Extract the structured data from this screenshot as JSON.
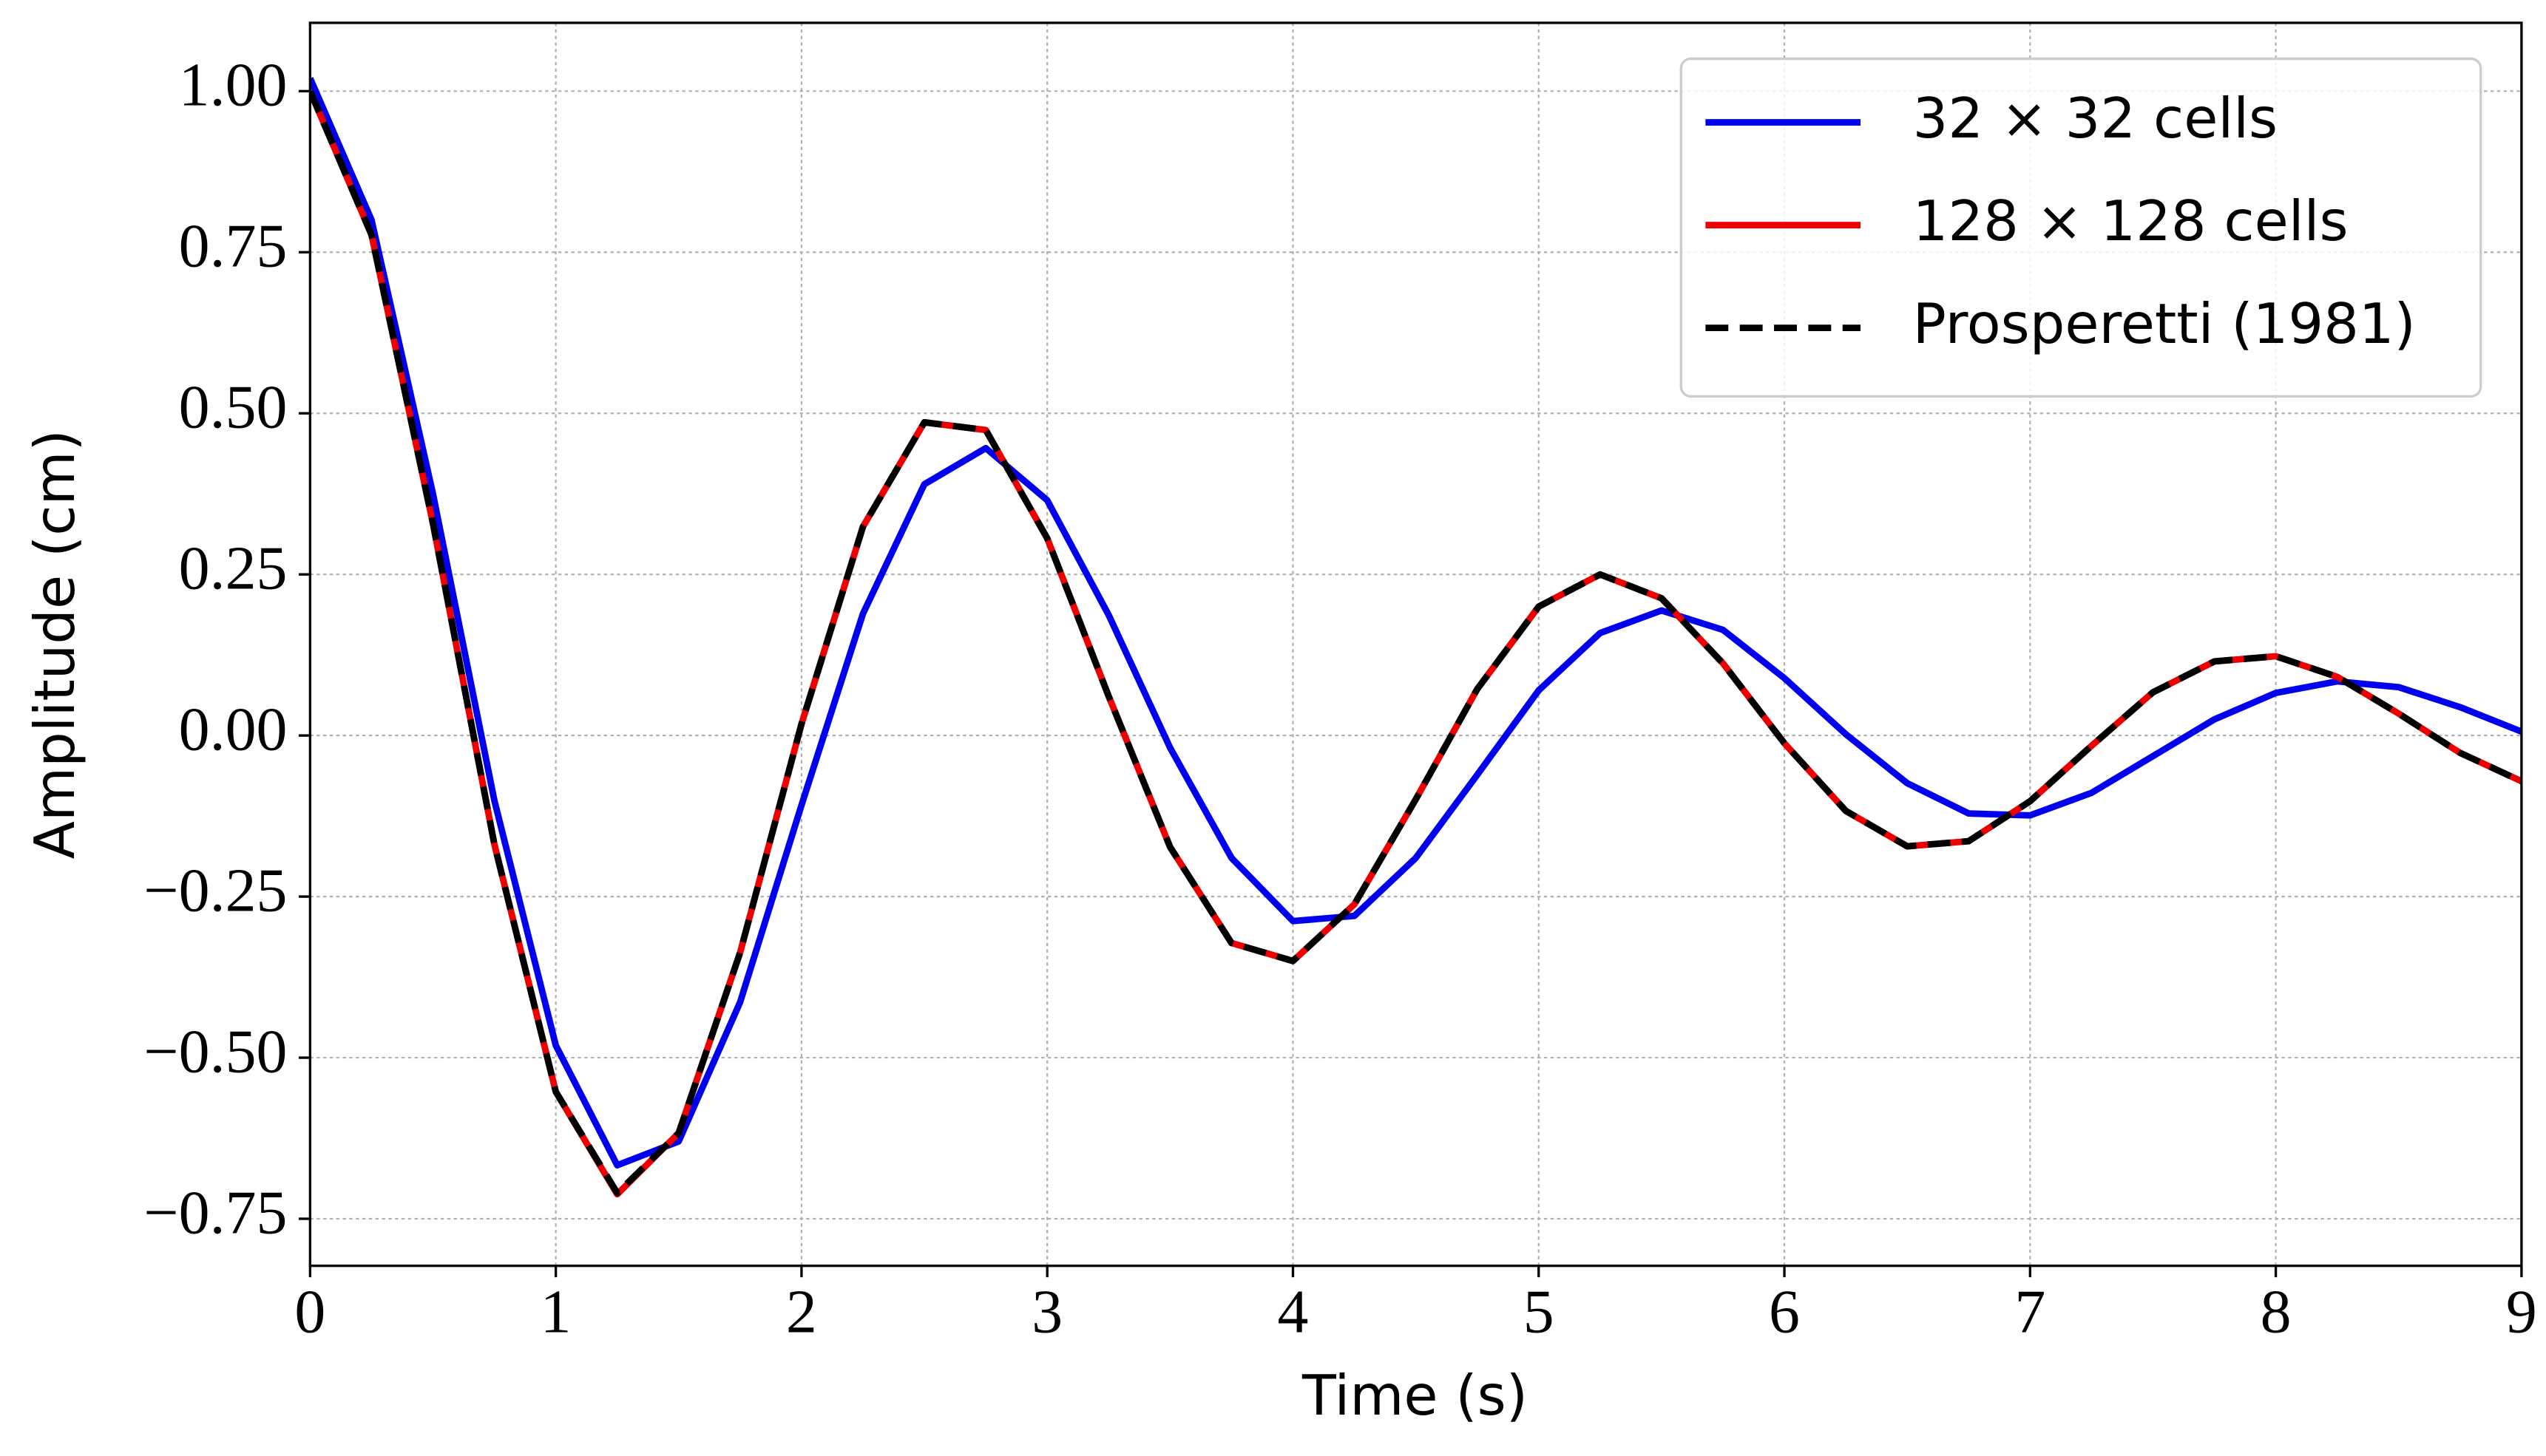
{
  "chart_data": {
    "type": "line",
    "x_label": "Time (s)",
    "y_label": "Amplitude (cm)",
    "xlim": [
      0,
      9
    ],
    "ylim": [
      -0.823,
      1.106
    ],
    "xticks": [
      0,
      1,
      2,
      3,
      4,
      5,
      6,
      7,
      8,
      9
    ],
    "yticks": [
      {
        "value": 1.0,
        "label": "1.00"
      },
      {
        "value": 0.75,
        "label": "0.75"
      },
      {
        "value": 0.5,
        "label": "0.50"
      },
      {
        "value": 0.25,
        "label": "0.25"
      },
      {
        "value": 0.0,
        "label": "0.00"
      },
      {
        "value": -0.25,
        "label": "−0.25"
      },
      {
        "value": -0.5,
        "label": "−0.50"
      },
      {
        "value": -0.75,
        "label": "−0.75"
      }
    ],
    "grid": true,
    "legend": "upper right",
    "x": [
      0,
      0.25,
      0.5,
      0.75,
      1,
      1.25,
      1.5,
      1.75,
      2,
      2.25,
      2.5,
      2.75,
      3,
      3.25,
      3.5,
      3.75,
      4,
      4.25,
      4.5,
      4.75,
      5,
      5.25,
      5.5,
      5.75,
      6,
      6.25,
      6.5,
      6.75,
      7,
      7.25,
      7.5,
      7.75,
      8,
      8.25,
      8.5,
      8.75,
      9
    ],
    "series": [
      {
        "name": "32 × 32 cells",
        "color": "#0000ee",
        "dashed": false,
        "values": [
          1.02,
          0.8,
          0.375,
          -0.101,
          -0.481,
          -0.667,
          -0.63,
          -0.414,
          -0.108,
          0.189,
          0.39,
          0.446,
          0.365,
          0.187,
          -0.019,
          -0.19,
          -0.288,
          -0.28,
          -0.19,
          -0.061,
          0.07,
          0.159,
          0.194,
          0.164,
          0.089,
          0.002,
          -0.074,
          -0.121,
          -0.124,
          -0.089,
          -0.032,
          0.025,
          0.066,
          0.084,
          0.075,
          0.044,
          0.006
        ]
      },
      {
        "name": "128 × 128 cells",
        "color": "#ee0000",
        "dashed": false,
        "values": [
          1.0,
          0.777,
          0.329,
          -0.169,
          -0.553,
          -0.712,
          -0.617,
          -0.337,
          0.018,
          0.324,
          0.486,
          0.474,
          0.306,
          0.061,
          -0.173,
          -0.322,
          -0.35,
          -0.262,
          -0.099,
          0.072,
          0.2,
          0.25,
          0.213,
          0.112,
          -0.012,
          -0.117,
          -0.172,
          -0.164,
          -0.102,
          -0.016,
          0.067,
          0.115,
          0.123,
          0.091,
          0.034,
          -0.027,
          -0.071
        ]
      },
      {
        "name": "Prosperetti (1981)",
        "color": "#000000",
        "dashed": true,
        "values": [
          1.0,
          0.777,
          0.329,
          -0.169,
          -0.553,
          -0.71,
          -0.617,
          -0.337,
          0.018,
          0.324,
          0.486,
          0.474,
          0.306,
          0.061,
          -0.173,
          -0.322,
          -0.35,
          -0.262,
          -0.099,
          0.072,
          0.2,
          0.25,
          0.213,
          0.112,
          -0.012,
          -0.117,
          -0.172,
          -0.164,
          -0.102,
          -0.016,
          0.067,
          0.115,
          0.123,
          0.091,
          0.034,
          -0.027,
          -0.071
        ]
      }
    ]
  }
}
